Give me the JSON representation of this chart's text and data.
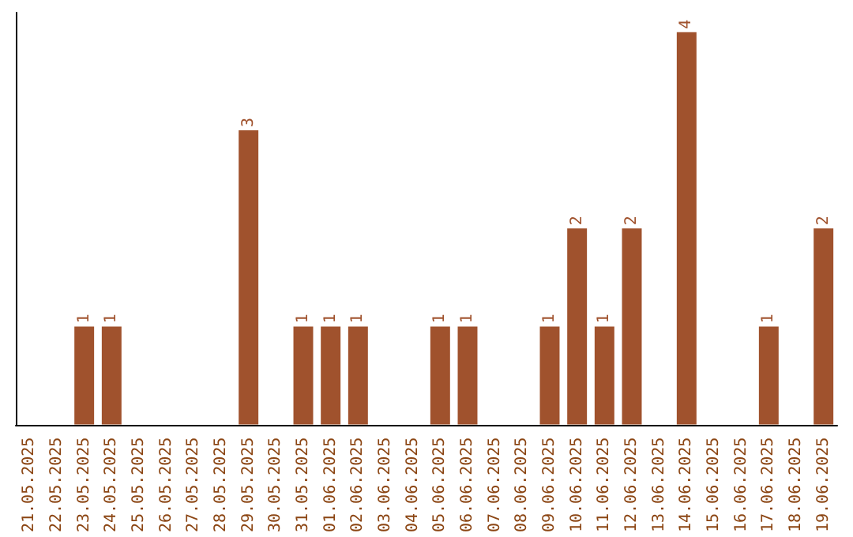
{
  "chart_data": {
    "type": "bar",
    "categories": [
      "21.05.2025",
      "22.05.2025",
      "23.05.2025",
      "24.05.2025",
      "25.05.2025",
      "26.05.2025",
      "27.05.2025",
      "28.05.2025",
      "29.05.2025",
      "30.05.2025",
      "31.05.2025",
      "01.06.2025",
      "02.06.2025",
      "03.06.2025",
      "04.06.2025",
      "05.06.2025",
      "06.06.2025",
      "07.06.2025",
      "08.06.2025",
      "09.06.2025",
      "10.06.2025",
      "11.06.2025",
      "12.06.2025",
      "13.06.2025",
      "14.06.2025",
      "15.06.2025",
      "16.06.2025",
      "17.06.2025",
      "18.06.2025",
      "19.06.2025"
    ],
    "values": [
      0,
      0,
      1,
      1,
      0,
      0,
      0,
      0,
      3,
      0,
      1,
      1,
      1,
      0,
      0,
      1,
      1,
      0,
      0,
      1,
      2,
      1,
      2,
      0,
      4,
      0,
      0,
      1,
      0,
      2
    ],
    "value_labels": [
      null,
      null,
      "1",
      "1",
      null,
      null,
      null,
      null,
      "3",
      null,
      "1",
      "1",
      "1",
      null,
      null,
      "1",
      "1",
      null,
      null,
      "1",
      "2",
      "1",
      "2",
      null,
      "4",
      null,
      null,
      "1",
      null,
      "2"
    ],
    "color": "#a0522d",
    "grid": false,
    "tick_labels": "x"
  }
}
